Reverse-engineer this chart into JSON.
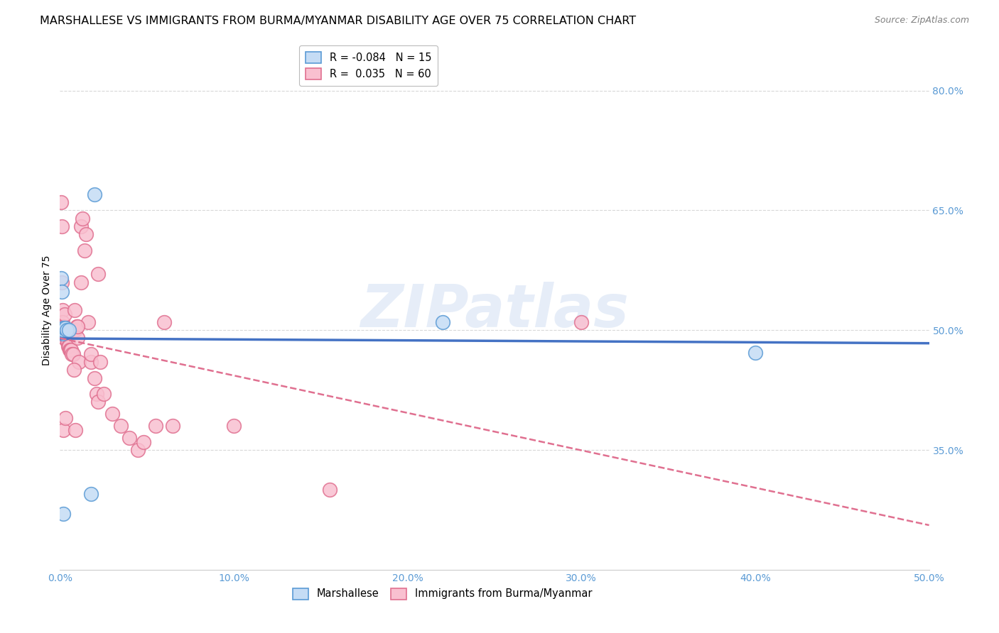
{
  "title": "MARSHALLESE VS IMMIGRANTS FROM BURMA/MYANMAR DISABILITY AGE OVER 75 CORRELATION CHART",
  "source": "Source: ZipAtlas.com",
  "ylabel": "Disability Age Over 75",
  "watermark": "ZIPatlas",
  "xlim": [
    0.0,
    0.5
  ],
  "ylim": [
    0.2,
    0.85
  ],
  "ytick_vals": [
    0.35,
    0.5,
    0.65,
    0.8
  ],
  "ytick_labels": [
    "35.0%",
    "50.0%",
    "65.0%",
    "80.0%"
  ],
  "xtick_vals": [
    0.0,
    0.1,
    0.2,
    0.3,
    0.4,
    0.5
  ],
  "xtick_labels": [
    "0.0%",
    "10.0%",
    "20.0%",
    "30.0%",
    "40.0%",
    "50.0%"
  ],
  "blue_scatter_x": [
    0.0008,
    0.001,
    0.0012,
    0.0015,
    0.0018,
    0.002,
    0.0025,
    0.003,
    0.004,
    0.005,
    0.22,
    0.4,
    0.002,
    0.018,
    0.02
  ],
  "blue_scatter_y": [
    0.565,
    0.548,
    0.5,
    0.496,
    0.503,
    0.5,
    0.503,
    0.503,
    0.5,
    0.5,
    0.51,
    0.472,
    0.27,
    0.295,
    0.67
  ],
  "pink_scatter_x": [
    0.0008,
    0.001,
    0.0012,
    0.0015,
    0.0015,
    0.0018,
    0.002,
    0.0022,
    0.0025,
    0.0028,
    0.003,
    0.0032,
    0.0035,
    0.0038,
    0.004,
    0.0042,
    0.0045,
    0.0048,
    0.005,
    0.0055,
    0.006,
    0.0065,
    0.007,
    0.0075,
    0.008,
    0.0085,
    0.009,
    0.0095,
    0.01,
    0.011,
    0.012,
    0.013,
    0.014,
    0.015,
    0.016,
    0.018,
    0.02,
    0.021,
    0.022,
    0.025,
    0.03,
    0.035,
    0.04,
    0.045,
    0.048,
    0.055,
    0.06,
    0.065,
    0.1,
    0.155,
    0.3,
    0.002,
    0.003,
    0.008,
    0.009,
    0.01,
    0.012,
    0.018,
    0.022,
    0.023
  ],
  "pink_scatter_y": [
    0.66,
    0.63,
    0.56,
    0.525,
    0.51,
    0.505,
    0.505,
    0.5,
    0.49,
    0.52,
    0.5,
    0.495,
    0.495,
    0.49,
    0.49,
    0.485,
    0.485,
    0.48,
    0.48,
    0.475,
    0.475,
    0.475,
    0.47,
    0.47,
    0.5,
    0.525,
    0.5,
    0.505,
    0.49,
    0.46,
    0.63,
    0.64,
    0.6,
    0.62,
    0.51,
    0.46,
    0.44,
    0.42,
    0.41,
    0.42,
    0.395,
    0.38,
    0.365,
    0.35,
    0.36,
    0.38,
    0.51,
    0.38,
    0.38,
    0.3,
    0.51,
    0.375,
    0.39,
    0.45,
    0.375,
    0.505,
    0.56,
    0.47,
    0.57,
    0.46
  ],
  "blue_line_color": "#4472c4",
  "pink_line_color": "#e07090",
  "grid_color": "#d8d8d8",
  "axis_color": "#5b9bd5",
  "background_color": "#ffffff",
  "title_fontsize": 11.5,
  "ylabel_fontsize": 10,
  "tick_fontsize": 10,
  "source_fontsize": 9,
  "legend_top_labels": [
    "R = -0.084   N = 15",
    "R =  0.035   N = 60"
  ],
  "legend_bot_labels": [
    "Marshallese",
    "Immigrants from Burma/Myanmar"
  ],
  "blue_patch_fc": "#c5dcf5",
  "blue_patch_ec": "#5b9bd5",
  "pink_patch_fc": "#f9c0d0",
  "pink_patch_ec": "#e07090"
}
